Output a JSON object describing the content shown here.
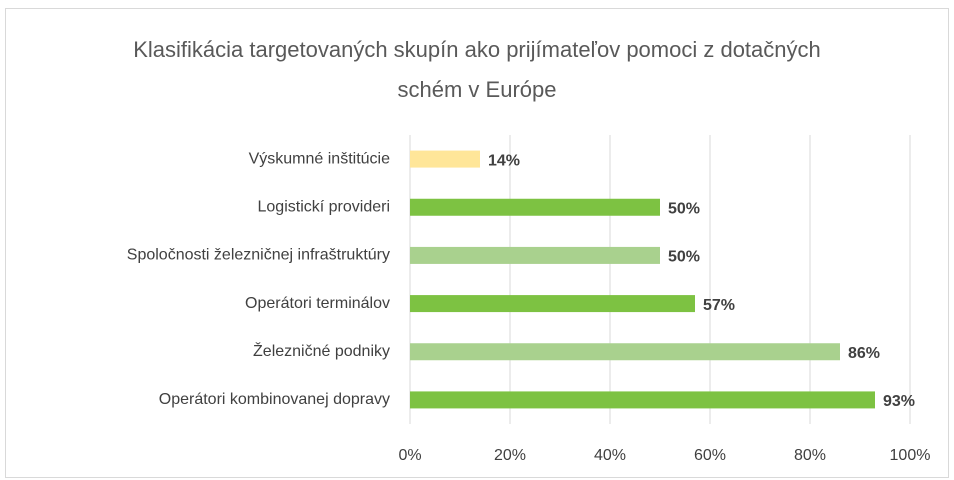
{
  "chart_data": {
    "type": "bar",
    "orientation": "horizontal",
    "title": "Klasifikácia targetovaných skupín ako prijímateľov pomoci z dotačných schém v Európe",
    "categories": [
      "Výskumné inštitúcie",
      "Logistickí provideri",
      "Spoločnosti železničnej infraštruktúry",
      "Operátori terminálov",
      "Železničné podniky",
      "Operátori kombinovanej dopravy"
    ],
    "values": [
      14,
      50,
      50,
      57,
      86,
      93
    ],
    "value_labels": [
      "14%",
      "50%",
      "50%",
      "57%",
      "86%",
      "93%"
    ],
    "colors": [
      "#ffe699",
      "#7dc242",
      "#a9d18e",
      "#7dc242",
      "#a9d18e",
      "#7dc242"
    ],
    "xlim": [
      0,
      100
    ],
    "xticks": [
      {
        "value": 0,
        "label": "0%"
      },
      {
        "value": 20,
        "label": "20%"
      },
      {
        "value": 40,
        "label": "40%"
      },
      {
        "value": 60,
        "label": "60%"
      },
      {
        "value": 80,
        "label": "80%"
      },
      {
        "value": 100,
        "label": "100%"
      }
    ],
    "grid": true
  }
}
